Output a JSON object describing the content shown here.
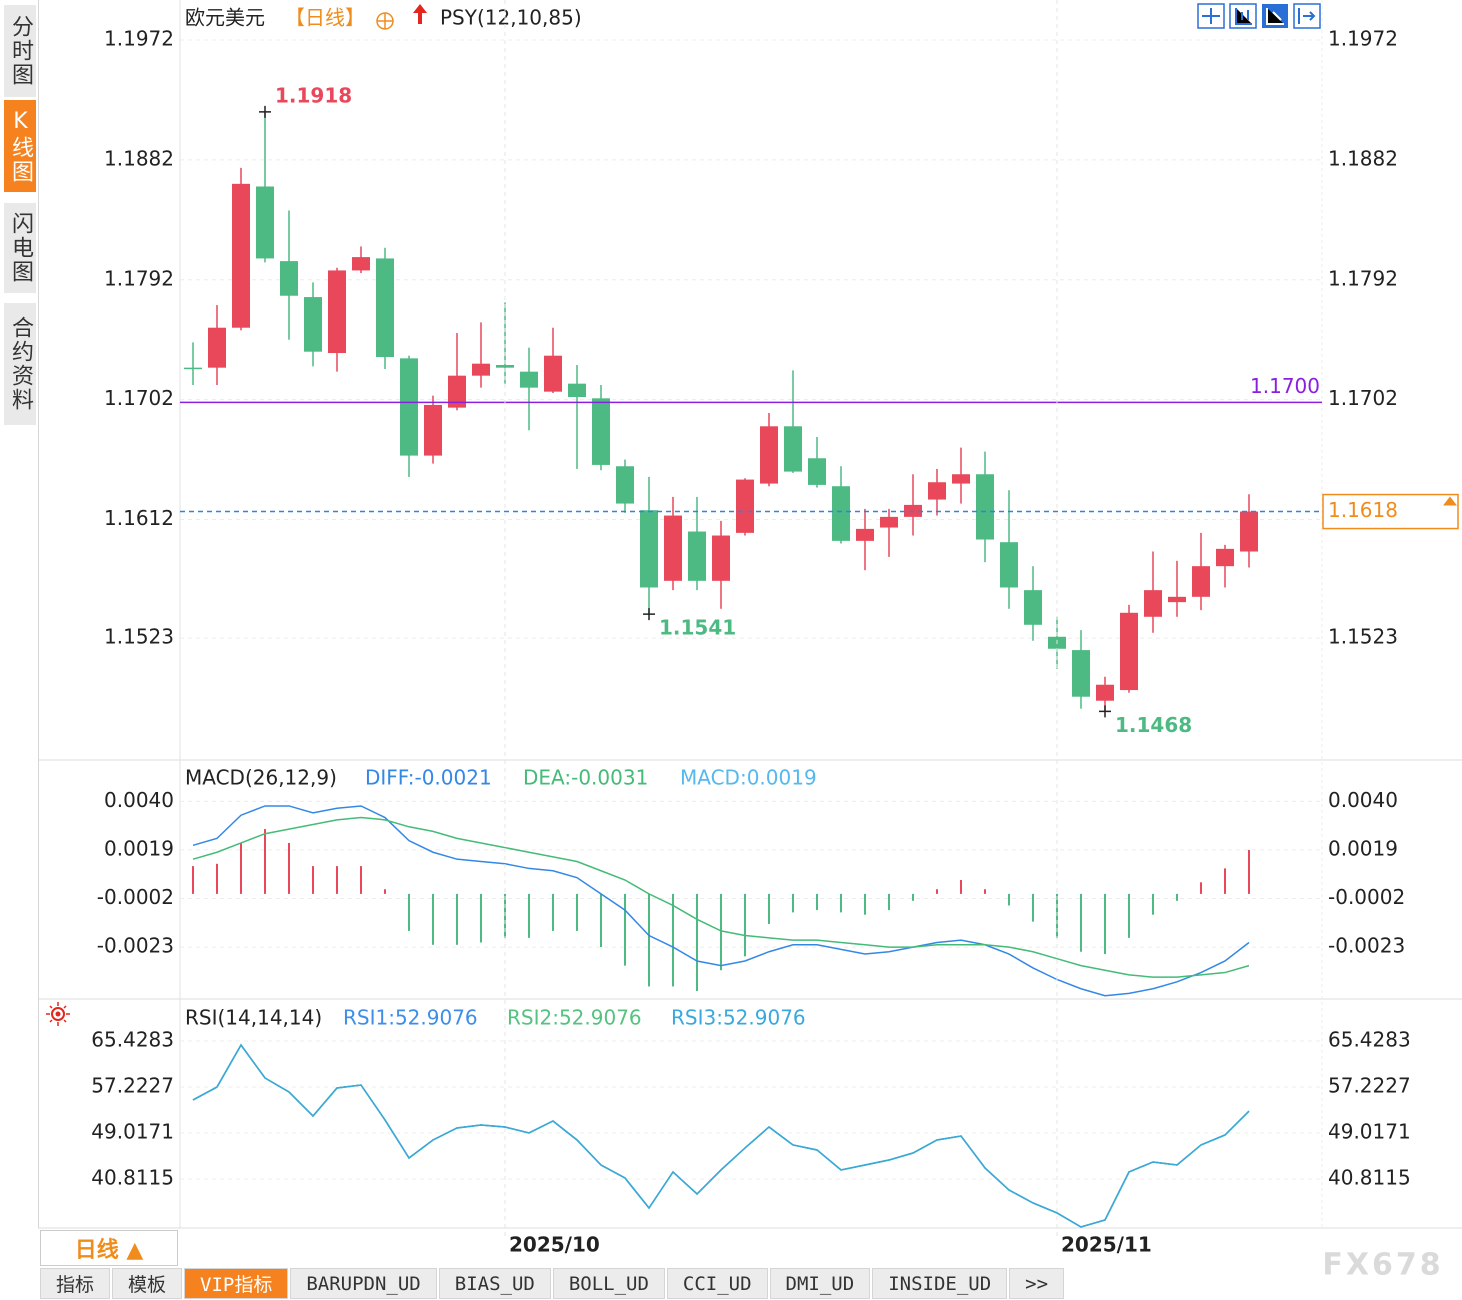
{
  "sidebar": [
    "分时图",
    "K线图",
    "闪电图",
    "合约资料"
  ],
  "bottom_bar": {
    "period_button": "日线 ▲",
    "tabs": [
      "指标",
      "模板",
      "VIP指标",
      "BARUPDN_UD",
      "BIAS_UD",
      "BOLL_UD",
      "CCI_UD",
      "DMI_UD",
      "INSIDE_UD",
      ">>"
    ]
  },
  "watermark": "FX678",
  "chart_data": [
    {
      "type": "candlestick",
      "title": "欧元美元",
      "period": "【日线】",
      "indicator": "PSY(12,10,85)",
      "open": [
        1.1726,
        1.1726,
        1.1756,
        1.1862,
        1.1806,
        1.1779,
        1.1737,
        1.1799,
        1.1808,
        1.1733,
        1.166,
        1.1696,
        1.172,
        1.1728,
        1.1723,
        1.1708,
        1.1714,
        1.1703,
        1.1652,
        1.1619,
        1.1566,
        1.1603,
        1.1566,
        1.1602,
        1.1639,
        1.1682,
        1.1658,
        1.1637,
        1.1596,
        1.1606,
        1.1614,
        1.1627,
        1.1639,
        1.1646,
        1.1595,
        1.1559,
        1.1524,
        1.1514,
        1.1476,
        1.1484,
        1.1539,
        1.155,
        1.1554,
        1.1577,
        1.1588
      ],
      "high": [
        1.1745,
        1.1773,
        1.1876,
        1.1918,
        1.1844,
        1.179,
        1.1801,
        1.1817,
        1.1816,
        1.1735,
        1.1705,
        1.1752,
        1.176,
        1.1775,
        1.1741,
        1.1756,
        1.1728,
        1.1713,
        1.1657,
        1.1644,
        1.1629,
        1.1629,
        1.1611,
        1.1643,
        1.1692,
        1.1724,
        1.1674,
        1.1652,
        1.162,
        1.162,
        1.1646,
        1.165,
        1.1666,
        1.1663,
        1.1634,
        1.1577,
        1.1539,
        1.1529,
        1.1494,
        1.1548,
        1.1588,
        1.1581,
        1.1602,
        1.1593,
        1.1631
      ],
      "low": [
        1.1713,
        1.1713,
        1.1754,
        1.1805,
        1.1747,
        1.1727,
        1.1723,
        1.1797,
        1.1725,
        1.1644,
        1.1654,
        1.1694,
        1.1711,
        1.1714,
        1.1679,
        1.1707,
        1.165,
        1.1649,
        1.1617,
        1.1541,
        1.1559,
        1.1559,
        1.1545,
        1.16,
        1.1637,
        1.1647,
        1.1636,
        1.1594,
        1.1574,
        1.1584,
        1.16,
        1.1615,
        1.1624,
        1.158,
        1.1545,
        1.1521,
        1.15,
        1.147,
        1.1468,
        1.1482,
        1.1527,
        1.1539,
        1.1544,
        1.1561,
        1.1576
      ],
      "close": [
        1.1725,
        1.1756,
        1.1864,
        1.1808,
        1.178,
        1.1738,
        1.1799,
        1.1809,
        1.1734,
        1.166,
        1.1698,
        1.172,
        1.1729,
        1.1726,
        1.1711,
        1.1735,
        1.1704,
        1.1653,
        1.1624,
        1.1561,
        1.1615,
        1.1566,
        1.16,
        1.1642,
        1.1682,
        1.1648,
        1.1638,
        1.1596,
        1.1605,
        1.1614,
        1.1623,
        1.164,
        1.1646,
        1.1597,
        1.1561,
        1.1533,
        1.1515,
        1.1479,
        1.1488,
        1.1542,
        1.1559,
        1.1554,
        1.1577,
        1.159,
        1.1618
      ],
      "up_color": "#e9485b",
      "down_color": "#4cba82",
      "ylim": [
        1.1433,
        1.2002
      ],
      "yticks": [
        1.1523,
        1.1612,
        1.1702,
        1.1792,
        1.1882,
        1.1972
      ],
      "grid": true,
      "reference_line": {
        "value": 1.17,
        "label": "1.1700",
        "color": "#8b1fe0"
      },
      "last_price_color": "#f08c1c",
      "last_line_color": "#2f80ed"
    },
    {
      "type": "macd",
      "title": "MACD(26,12,9)",
      "series": [
        {
          "name": "DIFF:-0.0021",
          "color": "#3388e6",
          "style": "line",
          "values": [
            0.0021,
            0.0024,
            0.0034,
            0.0038,
            0.0038,
            0.0035,
            0.0037,
            0.0038,
            0.0033,
            0.0023,
            0.0018,
            0.0015,
            0.0014,
            0.0013,
            0.0011,
            0.001,
            0.0007,
            0,
            -0.0007,
            -0.0018,
            -0.0023,
            -0.0029,
            -0.0031,
            -0.0029,
            -0.0025,
            -0.0022,
            -0.0022,
            -0.0024,
            -0.0026,
            -0.0025,
            -0.0023,
            -0.0021,
            -0.002,
            -0.0022,
            -0.0026,
            -0.0032,
            -0.0037,
            -0.0041,
            -0.0044,
            -0.0043,
            -0.0041,
            -0.0038,
            -0.0034,
            -0.0029,
            -0.0021
          ]
        },
        {
          "name": "DEA:-0.0031",
          "color": "#44bb77",
          "style": "line",
          "values": [
            0.0015,
            0.0018,
            0.0022,
            0.0026,
            0.0028,
            0.003,
            0.0032,
            0.0033,
            0.0032,
            0.0029,
            0.0027,
            0.0024,
            0.0022,
            0.002,
            0.0018,
            0.0016,
            0.0014,
            0.001,
            0.0006,
            0,
            -0.0005,
            -0.0011,
            -0.0016,
            -0.0018,
            -0.0019,
            -0.002,
            -0.002,
            -0.0021,
            -0.0022,
            -0.0023,
            -0.0023,
            -0.0022,
            -0.0022,
            -0.0022,
            -0.0023,
            -0.0025,
            -0.0028,
            -0.0031,
            -0.0033,
            -0.0035,
            -0.0036,
            -0.0036,
            -0.0035,
            -0.0034,
            -0.0031
          ]
        },
        {
          "name": "MACD:0.0019",
          "color": "#55b8ee",
          "style": "bar",
          "values": [
            0.0012,
            0.0013,
            0.0022,
            0.0028,
            0.0022,
            0.0012,
            0.0012,
            0.0012,
            0.0002,
            -0.0016,
            -0.0022,
            -0.0022,
            -0.0021,
            -0.0019,
            -0.0019,
            -0.0016,
            -0.0016,
            -0.0023,
            -0.0031,
            -0.004,
            -0.004,
            -0.0042,
            -0.0033,
            -0.0027,
            -0.0013,
            -0.0008,
            -0.0007,
            -0.0008,
            -0.0009,
            -0.0007,
            -0.0003,
            0.0002,
            0.0006,
            0.0002,
            -0.0005,
            -0.0012,
            -0.0019,
            -0.0025,
            -0.0026,
            -0.0019,
            -0.0009,
            -0.0003,
            0.0005,
            0.0011,
            0.0019
          ]
        }
      ],
      "up_color": "#e9485b",
      "down_color": "#4cba82",
      "ylim": [
        -0.0045,
        0.0057
      ],
      "yticks": [
        -0.0023,
        -0.0002,
        0.0019,
        {
          "value": 0.004,
          "label": "0.0040"
        }
      ],
      "grid": true
    },
    {
      "type": "line",
      "title": "RSI(14,14,14)",
      "categories": [
        null,
        null,
        null,
        null,
        null,
        null,
        null,
        null,
        null,
        null,
        null,
        null,
        null,
        "2025/10",
        null,
        null,
        null,
        null,
        null,
        null,
        null,
        null,
        null,
        null,
        null,
        null,
        null,
        null,
        null,
        null,
        null,
        null,
        null,
        null,
        null,
        null,
        "2025/11",
        null,
        null,
        null,
        null,
        null,
        null,
        null,
        null
      ],
      "series": [
        {
          "name": "RSI1:52.9076",
          "color": "#3d8ee8",
          "values": [
            54.91,
            57.22,
            64.71,
            58.83,
            56.33,
            52.05,
            57.05,
            57.58,
            51.34,
            44.56,
            47.77,
            49.91,
            50.45,
            50.09,
            49.02,
            51.16,
            47.77,
            43.31,
            40.99,
            35.64,
            42.06,
            38.14,
            42.42,
            46.34,
            50.09,
            46.88,
            45.99,
            42.42,
            43.31,
            44.2,
            45.45,
            47.77,
            48.48,
            42.78,
            38.85,
            36.53,
            34.75,
            32.25,
            33.5,
            42.06,
            43.85,
            43.31,
            46.88,
            48.66,
            52.9076
          ]
        },
        {
          "name": "RSI2:52.9076",
          "color": "#55c27f",
          "values": [
            54.91,
            57.22,
            64.71,
            58.83,
            56.33,
            52.05,
            57.05,
            57.58,
            51.34,
            44.56,
            47.77,
            49.91,
            50.45,
            50.09,
            49.02,
            51.16,
            47.77,
            43.31,
            40.99,
            35.64,
            42.06,
            38.14,
            42.42,
            46.34,
            50.09,
            46.88,
            45.99,
            42.42,
            43.31,
            44.2,
            45.45,
            47.77,
            48.48,
            42.78,
            38.85,
            36.53,
            34.75,
            32.25,
            33.5,
            42.06,
            43.85,
            43.31,
            46.88,
            48.66,
            52.9076
          ]
        },
        {
          "name": "RSI3:52.9076",
          "color": "#3aa8dd",
          "values": [
            54.91,
            57.22,
            64.71,
            58.83,
            56.33,
            52.05,
            57.05,
            57.58,
            51.34,
            44.56,
            47.77,
            49.91,
            50.45,
            50.09,
            49.02,
            51.16,
            47.77,
            43.31,
            40.99,
            35.64,
            42.06,
            38.14,
            42.42,
            46.34,
            50.09,
            46.88,
            45.99,
            42.42,
            43.31,
            44.2,
            45.45,
            47.77,
            48.48,
            42.78,
            38.85,
            36.53,
            34.75,
            32.25,
            33.5,
            42.06,
            43.85,
            43.31,
            46.88,
            48.66,
            52.9076
          ]
        }
      ],
      "ylim": [
        32.07,
        72.74
      ],
      "yticks": [
        40.8115,
        49.0171,
        57.2227,
        65.4283
      ],
      "grid": true
    }
  ]
}
